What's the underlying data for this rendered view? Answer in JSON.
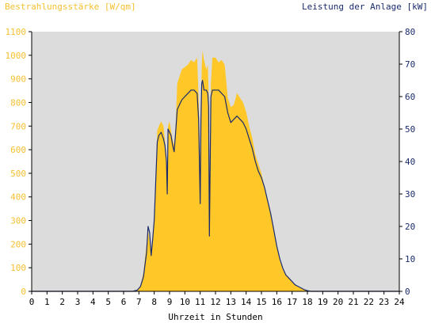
{
  "chart_data": {
    "type": "area",
    "title_left": "Bestrahlungsstärke [W/qm]",
    "title_right": "Leistung der Anlage [kW]",
    "xlabel": "Uhrzeit in Stunden",
    "x_ticks": [
      "0",
      "1",
      "2",
      "3",
      "4",
      "5",
      "6",
      "7",
      "8",
      "9",
      "10",
      "11",
      "12",
      "13",
      "14",
      "15",
      "16",
      "17",
      "18",
      "19",
      "20",
      "21",
      "22",
      "23",
      "24"
    ],
    "xlim": [
      0,
      24
    ],
    "y_left_ticks": [
      "0",
      "100",
      "200",
      "300",
      "400",
      "500",
      "600",
      "700",
      "800",
      "900",
      "1000",
      "1100"
    ],
    "ylim_left": [
      0,
      1100
    ],
    "y_right_ticks": [
      "0",
      "10",
      "20",
      "30",
      "40",
      "50",
      "60",
      "70",
      "80"
    ],
    "ylim_right": [
      0,
      80
    ],
    "grid": false,
    "colors": {
      "plot_bg": "#dcdcdc",
      "irradiance_fill": "#ffc828",
      "power_line": "#1a2a6c",
      "left_axis_text": "#f5c030",
      "right_axis_text": "#1a2a6c",
      "x_axis_text": "#000000"
    },
    "series": [
      {
        "key": "irradiance",
        "axis": "left",
        "style": "area",
        "x": [
          0,
          6.6,
          6.9,
          7.1,
          7.3,
          7.5,
          7.6,
          7.7,
          7.8,
          7.9,
          8.0,
          8.1,
          8.2,
          8.3,
          8.45,
          8.6,
          8.7,
          8.8,
          8.85,
          8.9,
          9.0,
          9.1,
          9.2,
          9.3,
          9.4,
          9.5,
          9.6,
          9.8,
          10.0,
          10.2,
          10.4,
          10.6,
          10.8,
          10.9,
          11.0,
          11.05,
          11.1,
          11.15,
          11.25,
          11.4,
          11.5,
          11.55,
          11.6,
          11.7,
          11.8,
          12.0,
          12.2,
          12.4,
          12.6,
          12.8,
          13.0,
          13.2,
          13.4,
          13.6,
          13.8,
          14.0,
          14.2,
          14.4,
          14.6,
          14.8,
          15.0,
          15.2,
          15.4,
          15.6,
          15.8,
          16.0,
          16.2,
          16.4,
          16.6,
          16.8,
          17.0,
          17.2,
          17.4,
          17.6,
          17.8,
          18.0,
          18.2,
          18.4,
          18.6,
          18.8,
          24
        ],
        "y": [
          0,
          0,
          5,
          25,
          80,
          200,
          260,
          210,
          160,
          230,
          320,
          500,
          680,
          700,
          720,
          700,
          640,
          560,
          400,
          700,
          720,
          680,
          640,
          620,
          700,
          880,
          900,
          940,
          950,
          960,
          980,
          970,
          990,
          820,
          540,
          700,
          950,
          1020,
          980,
          940,
          960,
          850,
          380,
          880,
          990,
          990,
          970,
          980,
          960,
          820,
          780,
          790,
          840,
          820,
          800,
          760,
          700,
          650,
          580,
          540,
          500,
          440,
          390,
          330,
          260,
          190,
          130,
          90,
          70,
          60,
          40,
          30,
          20,
          12,
          6,
          3,
          1,
          0,
          0,
          0,
          0
        ]
      },
      {
        "key": "power",
        "axis": "right",
        "style": "line",
        "x": [
          0,
          6.6,
          6.9,
          7.1,
          7.3,
          7.5,
          7.6,
          7.7,
          7.8,
          7.9,
          8.0,
          8.1,
          8.2,
          8.3,
          8.45,
          8.6,
          8.7,
          8.8,
          8.85,
          8.9,
          9.0,
          9.1,
          9.2,
          9.3,
          9.4,
          9.5,
          9.6,
          9.8,
          10.0,
          10.2,
          10.4,
          10.6,
          10.8,
          10.9,
          11.0,
          11.05,
          11.1,
          11.15,
          11.25,
          11.4,
          11.5,
          11.55,
          11.6,
          11.7,
          11.8,
          12.0,
          12.2,
          12.4,
          12.6,
          12.8,
          13.0,
          13.2,
          13.4,
          13.6,
          13.8,
          14.0,
          14.2,
          14.4,
          14.6,
          14.8,
          15.0,
          15.2,
          15.4,
          15.6,
          15.8,
          16.0,
          16.2,
          16.4,
          16.6,
          16.8,
          17.0,
          17.2,
          17.4,
          17.6,
          17.8,
          18.0,
          18.2,
          18.4,
          18.6,
          18.8,
          24
        ],
        "y": [
          0,
          0,
          0.4,
          1.5,
          4.5,
          12,
          20,
          18,
          11,
          16,
          22,
          34,
          46,
          48,
          49,
          47,
          45,
          40,
          30,
          50,
          49,
          48,
          45,
          43,
          49,
          56,
          57,
          59,
          60,
          61,
          62,
          62,
          61,
          53,
          27,
          52,
          64,
          65,
          62,
          62,
          61,
          57,
          17,
          60,
          62,
          62,
          62,
          61,
          60,
          55,
          52,
          53,
          54,
          53,
          52,
          50,
          47,
          44,
          40,
          37,
          35,
          32,
          28,
          24,
          19,
          14,
          10,
          7,
          5,
          4,
          3,
          2,
          1.5,
          1,
          0.5,
          0.2,
          0,
          0,
          0,
          0,
          0
        ]
      }
    ]
  }
}
